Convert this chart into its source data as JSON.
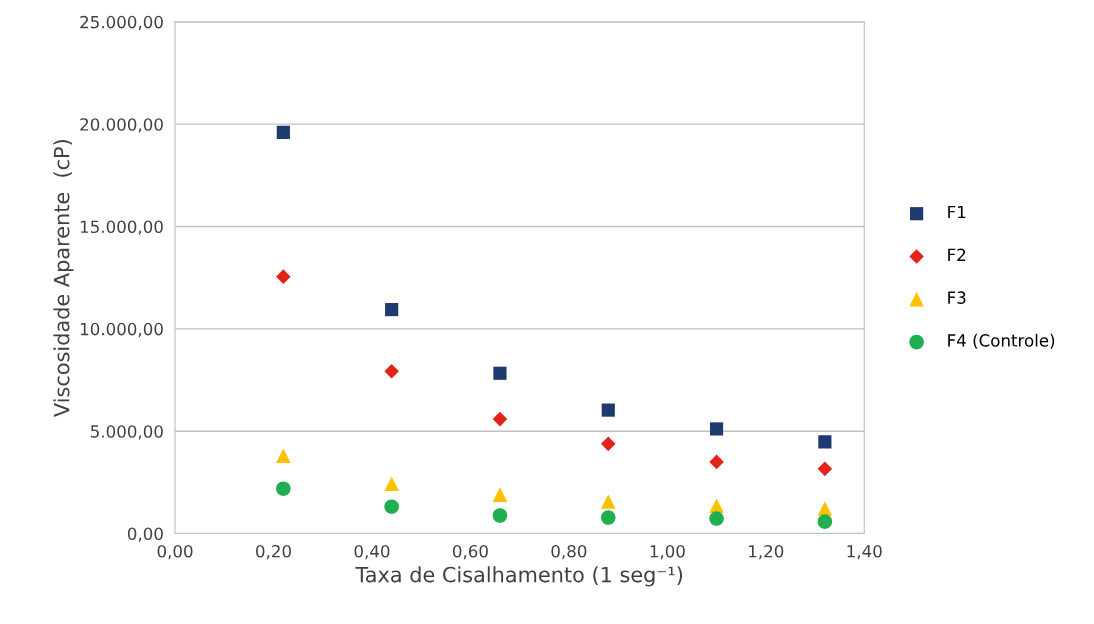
{
  "chart_data": {
    "type": "scatter",
    "xlabel": "Taxa de Cisalhamento (1 seg⁻¹)",
    "ylabel": "Viscosidade Aparente  (cP)",
    "x": [
      0.22,
      0.44,
      0.66,
      0.88,
      1.1,
      1.32
    ],
    "series": [
      {
        "name": "F1",
        "color": "#1f3a6e",
        "marker": "square",
        "values": [
          19600,
          10940,
          7830,
          6030,
          5110,
          4480
        ]
      },
      {
        "name": "F2",
        "color": "#e2231a",
        "marker": "diamond",
        "values": [
          12550,
          7930,
          5590,
          4380,
          3500,
          3160
        ]
      },
      {
        "name": "F3",
        "color": "#ffc000",
        "marker": "triangle",
        "values": [
          3800,
          2430,
          1900,
          1560,
          1360,
          1220
        ]
      },
      {
        "name": "F4 (Controle)",
        "color": "#1fae50",
        "marker": "circle",
        "values": [
          2190,
          1310,
          880,
          780,
          730,
          580
        ]
      }
    ],
    "xlim": [
      0,
      1.4
    ],
    "xticks": [
      {
        "value": 0,
        "label": "0,00"
      },
      {
        "value": 0.2,
        "label": "0,20"
      },
      {
        "value": 0.4,
        "label": "0,40"
      },
      {
        "value": 0.6,
        "label": "0,60"
      },
      {
        "value": 0.8,
        "label": "0,80"
      },
      {
        "value": 1.0,
        "label": "1,00"
      },
      {
        "value": 1.2,
        "label": "1,20"
      },
      {
        "value": 1.4,
        "label": "1,40"
      }
    ],
    "ylim": [
      0,
      25000
    ],
    "yticks": [
      {
        "value": 0,
        "label": "0,00"
      },
      {
        "value": 5000,
        "label": "5.000,00"
      },
      {
        "value": 10000,
        "label": "10.000,00"
      },
      {
        "value": 15000,
        "label": "15.000,00"
      },
      {
        "value": 20000,
        "label": "20.000,00"
      },
      {
        "value": 25000,
        "label": "25.000,00"
      }
    ],
    "grid": "y",
    "legend": "right"
  }
}
